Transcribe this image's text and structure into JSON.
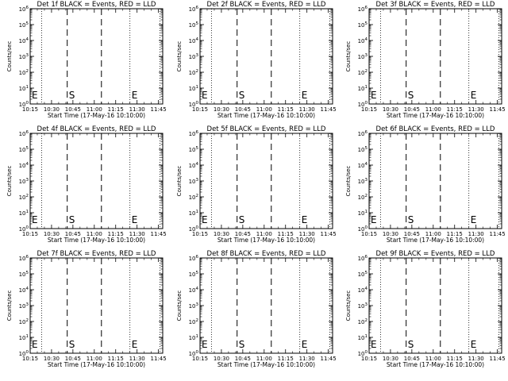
{
  "chart_data": [
    {
      "type": "line",
      "title": "Det 1f BLACK = Events, RED = LLD",
      "xlabel": "Start Time (17-May-16 10:10:00)",
      "ylabel": "Counts/sec",
      "xticks": [
        "10:15",
        "10:30",
        "10:45",
        "11:00",
        "11:15",
        "11:30",
        "11:45"
      ],
      "yticks": [
        "10^0",
        "10^1",
        "10^2",
        "10^3",
        "10^4",
        "10^5",
        "10^6"
      ],
      "yscale": "log",
      "ylim": [
        1,
        1000000
      ],
      "xlim_minutes": [
        5,
        98
      ],
      "dotted_lines": [
        13,
        75,
        96
      ],
      "dashed_lines": [
        31,
        55
      ],
      "markers": [
        {
          "label": "E",
          "x": 5
        },
        {
          "label": "S",
          "x": 31
        },
        {
          "label": "E",
          "x": 75
        }
      ],
      "series": []
    },
    {
      "type": "line",
      "title": "Det 2f BLACK = Events, RED = LLD",
      "xlabel": "Start Time (17-May-16 10:10:00)",
      "ylabel": "Counts/sec",
      "xticks": [
        "10:15",
        "10:30",
        "10:45",
        "11:00",
        "11:15",
        "11:30",
        "11:45"
      ],
      "yticks": [
        "10^0",
        "10^1",
        "10^2",
        "10^3",
        "10^4",
        "10^5",
        "10^6"
      ],
      "yscale": "log",
      "ylim": [
        1,
        1000000
      ],
      "xlim_minutes": [
        5,
        98
      ],
      "dotted_lines": [
        13,
        75,
        96
      ],
      "dashed_lines": [
        31,
        55
      ],
      "markers": [
        {
          "label": "E",
          "x": 5
        },
        {
          "label": "S",
          "x": 31
        },
        {
          "label": "E",
          "x": 75
        }
      ],
      "series": []
    },
    {
      "type": "line",
      "title": "Det 3f BLACK = Events, RED = LLD",
      "xlabel": "Start Time (17-May-16 10:10:00)",
      "ylabel": "Counts/sec",
      "xticks": [
        "10:15",
        "10:30",
        "10:45",
        "11:00",
        "11:15",
        "11:30",
        "11:45"
      ],
      "yticks": [
        "10^0",
        "10^1",
        "10^2",
        "10^3",
        "10^4",
        "10^5",
        "10^6"
      ],
      "yscale": "log",
      "ylim": [
        1,
        1000000
      ],
      "xlim_minutes": [
        5,
        98
      ],
      "dotted_lines": [
        13,
        75,
        96
      ],
      "dashed_lines": [
        31,
        55
      ],
      "markers": [
        {
          "label": "E",
          "x": 5
        },
        {
          "label": "S",
          "x": 31
        },
        {
          "label": "E",
          "x": 75
        }
      ],
      "series": []
    },
    {
      "type": "line",
      "title": "Det 4f BLACK = Events, RED = LLD",
      "xlabel": "Start Time (17-May-16 10:10:00)",
      "ylabel": "Counts/sec",
      "xticks": [
        "10:15",
        "10:30",
        "10:45",
        "11:00",
        "11:15",
        "11:30",
        "11:45"
      ],
      "yticks": [
        "10^0",
        "10^1",
        "10^2",
        "10^3",
        "10^4",
        "10^5",
        "10^6"
      ],
      "yscale": "log",
      "ylim": [
        1,
        1000000
      ],
      "xlim_minutes": [
        5,
        98
      ],
      "dotted_lines": [
        13,
        75,
        96
      ],
      "dashed_lines": [
        31,
        55
      ],
      "markers": [
        {
          "label": "E",
          "x": 5
        },
        {
          "label": "S",
          "x": 31
        },
        {
          "label": "E",
          "x": 75
        }
      ],
      "series": []
    },
    {
      "type": "line",
      "title": "Det 5f BLACK = Events, RED = LLD",
      "xlabel": "Start Time (17-May-16 10:10:00)",
      "ylabel": "Counts/sec",
      "xticks": [
        "10:15",
        "10:30",
        "10:45",
        "11:00",
        "11:15",
        "11:30",
        "11:45"
      ],
      "yticks": [
        "10^0",
        "10^1",
        "10^2",
        "10^3",
        "10^4",
        "10^5",
        "10^6"
      ],
      "yscale": "log",
      "ylim": [
        1,
        1000000
      ],
      "xlim_minutes": [
        5,
        98
      ],
      "dotted_lines": [
        13,
        75,
        96
      ],
      "dashed_lines": [
        31,
        55
      ],
      "markers": [
        {
          "label": "E",
          "x": 5
        },
        {
          "label": "S",
          "x": 31
        },
        {
          "label": "E",
          "x": 75
        }
      ],
      "series": []
    },
    {
      "type": "line",
      "title": "Det 6f BLACK = Events, RED = LLD",
      "xlabel": "Start Time (17-May-16 10:10:00)",
      "ylabel": "Counts/sec",
      "xticks": [
        "10:15",
        "10:30",
        "10:45",
        "11:00",
        "11:15",
        "11:30",
        "11:45"
      ],
      "yticks": [
        "10^0",
        "10^1",
        "10^2",
        "10^3",
        "10^4",
        "10^5",
        "10^6"
      ],
      "yscale": "log",
      "ylim": [
        1,
        1000000
      ],
      "xlim_minutes": [
        5,
        98
      ],
      "dotted_lines": [
        13,
        75,
        96
      ],
      "dashed_lines": [
        31,
        55
      ],
      "markers": [
        {
          "label": "E",
          "x": 5
        },
        {
          "label": "S",
          "x": 31
        },
        {
          "label": "E",
          "x": 75
        }
      ],
      "series": []
    },
    {
      "type": "line",
      "title": "Det 7f BLACK = Events, RED = LLD",
      "xlabel": "Start Time (17-May-16 10:10:00)",
      "ylabel": "Counts/sec",
      "xticks": [
        "10:15",
        "10:30",
        "10:45",
        "11:00",
        "11:15",
        "11:30",
        "11:45"
      ],
      "yticks": [
        "10^0",
        "10^1",
        "10^2",
        "10^3",
        "10^4",
        "10^5",
        "10^6"
      ],
      "yscale": "log",
      "ylim": [
        1,
        1000000
      ],
      "xlim_minutes": [
        5,
        98
      ],
      "dotted_lines": [
        13,
        75,
        96
      ],
      "dashed_lines": [
        31,
        55
      ],
      "markers": [
        {
          "label": "E",
          "x": 5
        },
        {
          "label": "S",
          "x": 31
        },
        {
          "label": "E",
          "x": 75
        }
      ],
      "series": []
    },
    {
      "type": "line",
      "title": "Det 8f BLACK = Events, RED = LLD",
      "xlabel": "Start Time (17-May-16 10:10:00)",
      "ylabel": "Counts/sec",
      "xticks": [
        "10:15",
        "10:30",
        "10:45",
        "11:00",
        "11:15",
        "11:30",
        "11:45"
      ],
      "yticks": [
        "10^0",
        "10^1",
        "10^2",
        "10^3",
        "10^4",
        "10^5",
        "10^6"
      ],
      "yscale": "log",
      "ylim": [
        1,
        1000000
      ],
      "xlim_minutes": [
        5,
        98
      ],
      "dotted_lines": [
        13,
        75,
        96
      ],
      "dashed_lines": [
        31,
        55
      ],
      "markers": [
        {
          "label": "E",
          "x": 5
        },
        {
          "label": "S",
          "x": 31
        },
        {
          "label": "E",
          "x": 75
        }
      ],
      "series": []
    },
    {
      "type": "line",
      "title": "Det 9f BLACK = Events, RED = LLD",
      "xlabel": "Start Time (17-May-16 10:10:00)",
      "ylabel": "Counts/sec",
      "xticks": [
        "10:15",
        "10:30",
        "10:45",
        "11:00",
        "11:15",
        "11:30",
        "11:45"
      ],
      "yticks": [
        "10^0",
        "10^1",
        "10^2",
        "10^3",
        "10^4",
        "10^5",
        "10^6"
      ],
      "yscale": "log",
      "ylim": [
        1,
        1000000
      ],
      "xlim_minutes": [
        5,
        98
      ],
      "dotted_lines": [
        13,
        75,
        96
      ],
      "dashed_lines": [
        31,
        55
      ],
      "markers": [
        {
          "label": "E",
          "x": 5
        },
        {
          "label": "S",
          "x": 31
        },
        {
          "label": "E",
          "x": 75
        }
      ],
      "series": []
    }
  ]
}
